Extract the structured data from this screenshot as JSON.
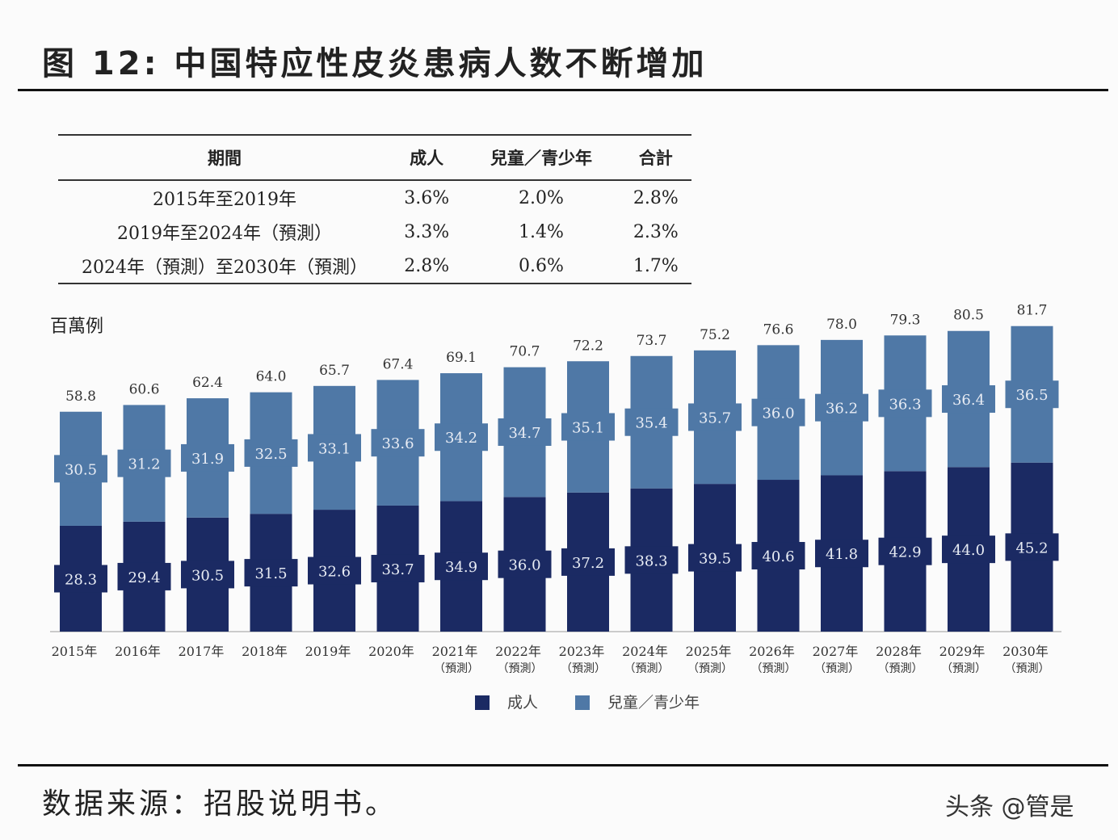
{
  "title": "图 12:  中国特应性皮炎患病人数不断增加",
  "table": {
    "headers": [
      "期間",
      "成人",
      "兒童／青少年",
      "合計"
    ],
    "rows": [
      [
        "2015年至2019年",
        "3.6%",
        "2.0%",
        "2.8%"
      ],
      [
        "2019年至2024年（預測）",
        "3.3%",
        "1.4%",
        "2.3%"
      ],
      [
        "2024年（預測）至2030年（預測）",
        "2.8%",
        "0.6%",
        "1.7%"
      ]
    ]
  },
  "source": "数据来源：招股说明书。",
  "watermark": "头条 @管是",
  "chart_data": {
    "type": "bar",
    "stacked": true,
    "ylabel": "百萬例",
    "categories": [
      "2015年",
      "2016年",
      "2017年",
      "2018年",
      "2019年",
      "2020年",
      "2021年（預測）",
      "2022年（預測）",
      "2023年（預測）",
      "2024年（預測）",
      "2025年（預測）",
      "2026年（預測）",
      "2027年（預測）",
      "2028年（預測）",
      "2029年（預測）",
      "2030年（預測）"
    ],
    "series": [
      {
        "name": "成人",
        "color": "#1b2a63",
        "values": [
          28.3,
          29.4,
          30.5,
          31.5,
          32.6,
          33.7,
          34.9,
          36.0,
          37.2,
          38.3,
          39.5,
          40.6,
          41.8,
          42.9,
          44.0,
          45.2
        ]
      },
      {
        "name": "兒童／青少年",
        "color": "#4f78a6",
        "values": [
          30.5,
          31.2,
          31.9,
          32.5,
          33.1,
          33.6,
          34.2,
          34.7,
          35.1,
          35.4,
          35.7,
          36.0,
          36.2,
          36.3,
          36.4,
          36.5
        ]
      }
    ],
    "totals": [
      58.8,
      60.6,
      62.4,
      64.0,
      65.7,
      67.4,
      69.1,
      70.7,
      72.2,
      73.7,
      75.2,
      76.6,
      78.0,
      79.3,
      80.5,
      81.7
    ],
    "legend": "bottom"
  }
}
